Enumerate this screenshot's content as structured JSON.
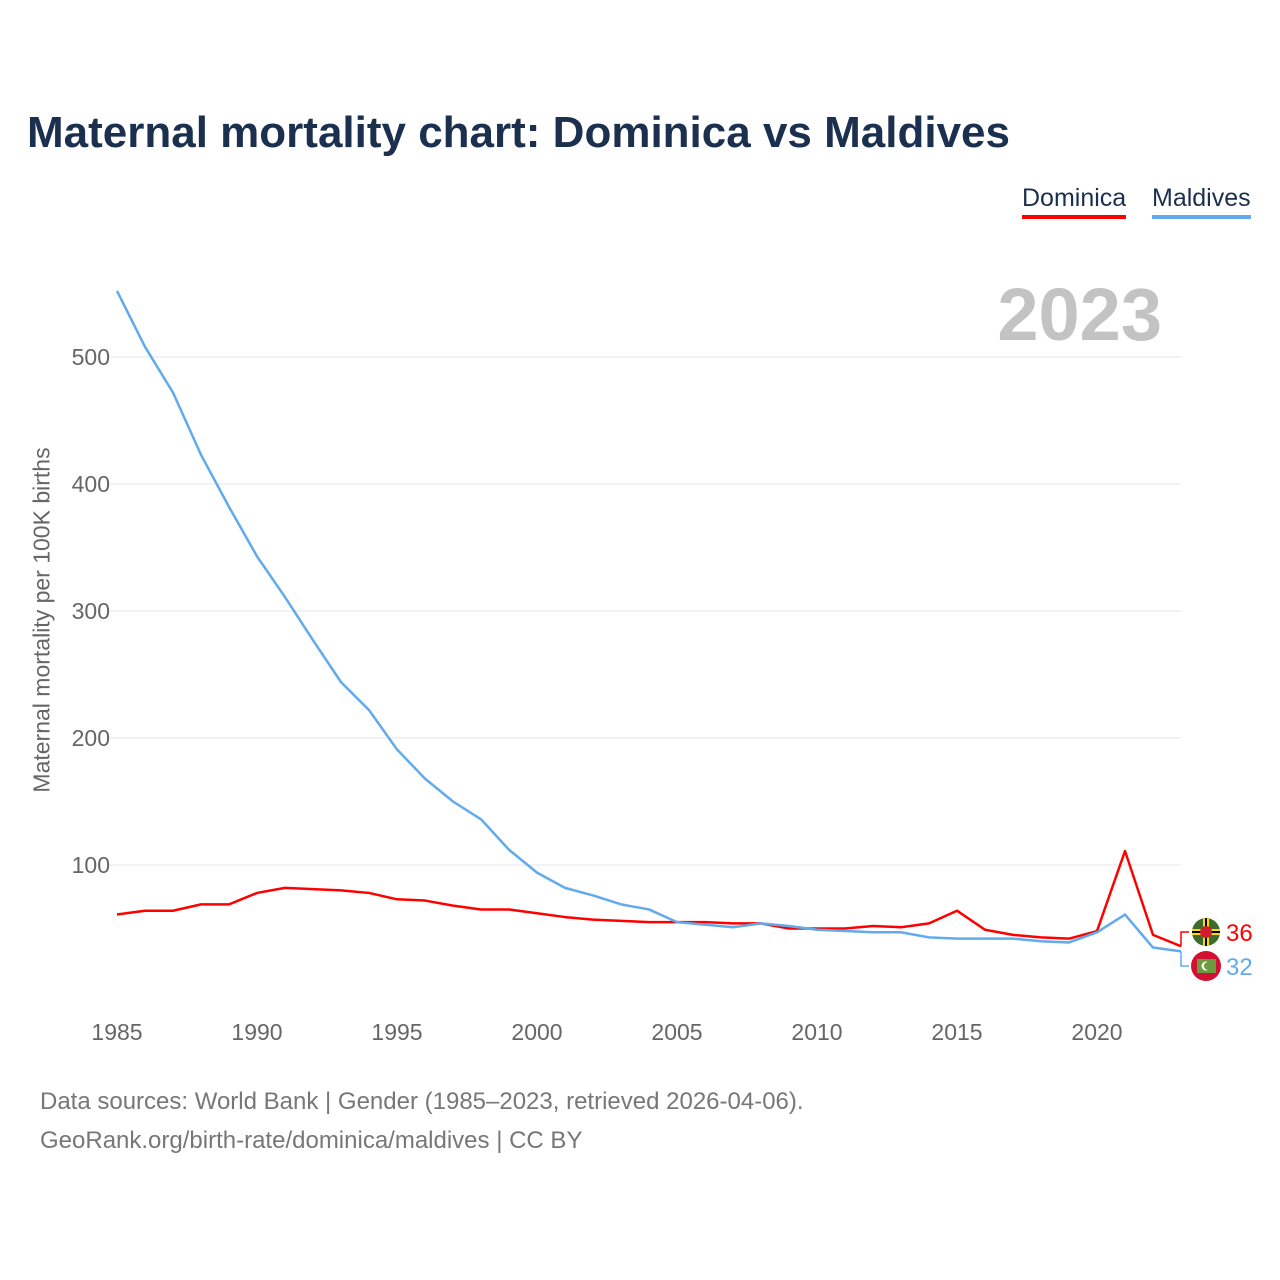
{
  "chart_data": {
    "type": "line",
    "title": "Maternal mortality chart: Dominica vs Maldives",
    "ylabel": "Maternal mortality per 100K births",
    "xlabel": "",
    "year_label": "2023",
    "xlim": [
      1985,
      2023
    ],
    "ylim": [
      0,
      560
    ],
    "x_ticks": [
      "1985",
      "1990",
      "1995",
      "2000",
      "2005",
      "2010",
      "2015",
      "2020"
    ],
    "y_ticks": [
      "100",
      "200",
      "300",
      "400",
      "500"
    ],
    "grid": true,
    "legend_position": "top-right",
    "x": [
      1985,
      1986,
      1987,
      1988,
      1989,
      1990,
      1991,
      1992,
      1993,
      1994,
      1995,
      1996,
      1997,
      1998,
      1999,
      2000,
      2001,
      2002,
      2003,
      2004,
      2005,
      2006,
      2007,
      2008,
      2009,
      2010,
      2011,
      2012,
      2013,
      2014,
      2015,
      2016,
      2017,
      2018,
      2019,
      2020,
      2021,
      2022,
      2023
    ],
    "series": [
      {
        "name": "Dominica",
        "color": "#ff0000",
        "end_label": "36",
        "flag": "dominica-flag",
        "values": [
          61,
          64,
          64,
          69,
          69,
          78,
          82,
          81,
          80,
          78,
          73,
          72,
          68,
          65,
          65,
          62,
          59,
          57,
          56,
          55,
          55,
          55,
          54,
          54,
          50,
          50,
          50,
          52,
          51,
          54,
          64,
          49,
          45,
          43,
          42,
          48,
          111,
          45,
          36
        ]
      },
      {
        "name": "Maldives",
        "color": "#62aaee",
        "end_label": "32",
        "flag": "maldives-flag",
        "values": [
          552,
          508,
          472,
          423,
          382,
          343,
          311,
          277,
          244,
          222,
          191,
          168,
          150,
          136,
          112,
          94,
          82,
          76,
          69,
          65,
          55,
          53,
          51,
          54,
          52,
          49,
          48,
          47,
          47,
          43,
          42,
          42,
          42,
          40,
          39,
          47,
          61,
          35,
          32
        ]
      }
    ]
  },
  "footer": {
    "source": "Data sources: World Bank | Gender (1985–2023, retrieved 2026-04-06).",
    "attribution": "GeoRank.org/birth-rate/dominica/maldives | CC BY"
  }
}
